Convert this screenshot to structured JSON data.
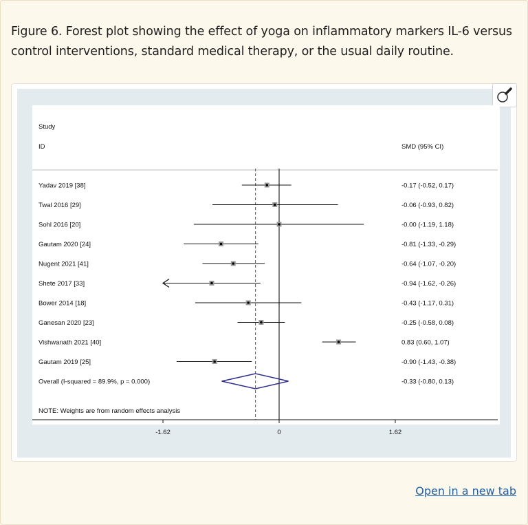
{
  "caption": "Figure 6. Forest plot showing the effect of yoga on inflammatory markers IL-6 versus control interventions, standard medical therapy, or the usual daily routine.",
  "open_link": "Open in a new tab",
  "zoom_icon": "magnifier-icon",
  "chart_data": {
    "type": "forest",
    "header": {
      "study_line1": "Study",
      "study_line2": "ID",
      "effect_label": "SMD (95% CI)"
    },
    "studies": [
      {
        "label": "Yadav 2019 [38]",
        "ref": "",
        "est": -0.17,
        "lo": -0.52,
        "hi": 0.17,
        "ci_text": "-0.17 (-0.52, 0.17)"
      },
      {
        "label": "Twal 2016",
        "ref": "[29]",
        "est": -0.06,
        "lo": -0.93,
        "hi": 0.82,
        "ci_text": "-0.06 (-0.93, 0.82)"
      },
      {
        "label": "Sohl 2016",
        "ref": "[20]",
        "est": 0.0,
        "lo": -1.19,
        "hi": 1.18,
        "ci_text": "-0.00 (-1.19, 1.18)"
      },
      {
        "label": "Gautam 2020",
        "ref": "[24]",
        "est": -0.81,
        "lo": -1.33,
        "hi": -0.29,
        "ci_text": "-0.81 (-1.33, -0.29)"
      },
      {
        "label": "Nugent 2021",
        "ref": "[41]",
        "est": -0.64,
        "lo": -1.07,
        "hi": -0.2,
        "ci_text": "-0.64 (-1.07, -0.20)"
      },
      {
        "label": "Shete 2017",
        "ref": "[33]",
        "est": -0.94,
        "lo": -1.62,
        "hi": -0.26,
        "ci_text": "-0.94 (-1.62, -0.26)",
        "arrow_left": true
      },
      {
        "label": "Bower 2014",
        "ref": "[18]",
        "est": -0.43,
        "lo": -1.17,
        "hi": 0.31,
        "ci_text": "-0.43 (-1.17, 0.31)"
      },
      {
        "label": "Ganesan 2020",
        "ref": "[23]",
        "est": -0.25,
        "lo": -0.58,
        "hi": 0.08,
        "ci_text": "-0.25 (-0.58, 0.08)"
      },
      {
        "label": "Vishwanath 2021",
        "ref": "[40]",
        "est": 0.83,
        "lo": 0.6,
        "hi": 1.07,
        "ci_text": "0.83 (0.60, 1.07)"
      },
      {
        "label": "Gautam 2019",
        "ref": "[25]",
        "est": -0.9,
        "lo": -1.43,
        "hi": -0.38,
        "ci_text": "-0.90 (-1.43, -0.38)"
      }
    ],
    "overall": {
      "label": "Overall  (I-squared = 89.9%, p = 0.000)",
      "est": -0.33,
      "lo": -0.8,
      "hi": 0.13,
      "ci_text": "-0.33 (-0.80, 0.13)"
    },
    "note": "NOTE: Weights are from random effects analysis",
    "x_ticks": [
      {
        "value": -1.62,
        "label": "-1.62"
      },
      {
        "value": 0,
        "label": "0"
      },
      {
        "value": 1.62,
        "label": "1.62"
      }
    ],
    "xlim": [
      -3.24,
      3.24
    ],
    "colors": {
      "diamond": "#2d2d8f",
      "dashed": "#a0505a",
      "line": "#111111"
    }
  }
}
